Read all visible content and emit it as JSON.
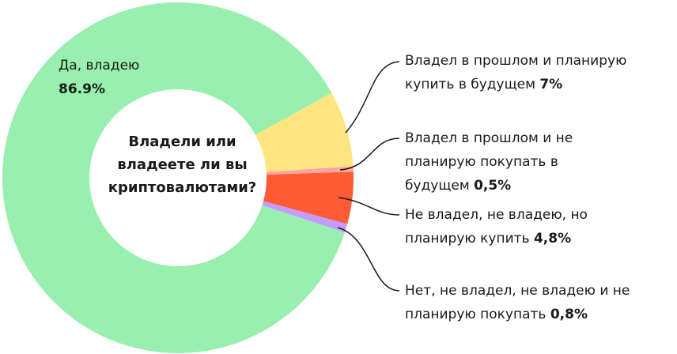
{
  "chart_data": {
    "type": "donut",
    "center_label": "Владели или владеете ли вы криптовалютами?",
    "categories": [
      "Да, владею",
      "Владел в прошлом и планирую купить в будущем",
      "Владел в прошлом и не планирую покупать в будущем",
      "Не владел, не владею, но планирую купить",
      "Нет, не владел, не владею и не планирую покупать"
    ],
    "values": [
      86.9,
      7,
      0.5,
      4.8,
      0.8
    ],
    "value_labels": [
      "86.9%",
      "7%",
      "0,5%",
      "4,8%",
      "0,8%"
    ],
    "colors": [
      "#98efae",
      "#ffe57f",
      "#ffa5a0",
      "#ff5c35",
      "#c49cff"
    ]
  }
}
